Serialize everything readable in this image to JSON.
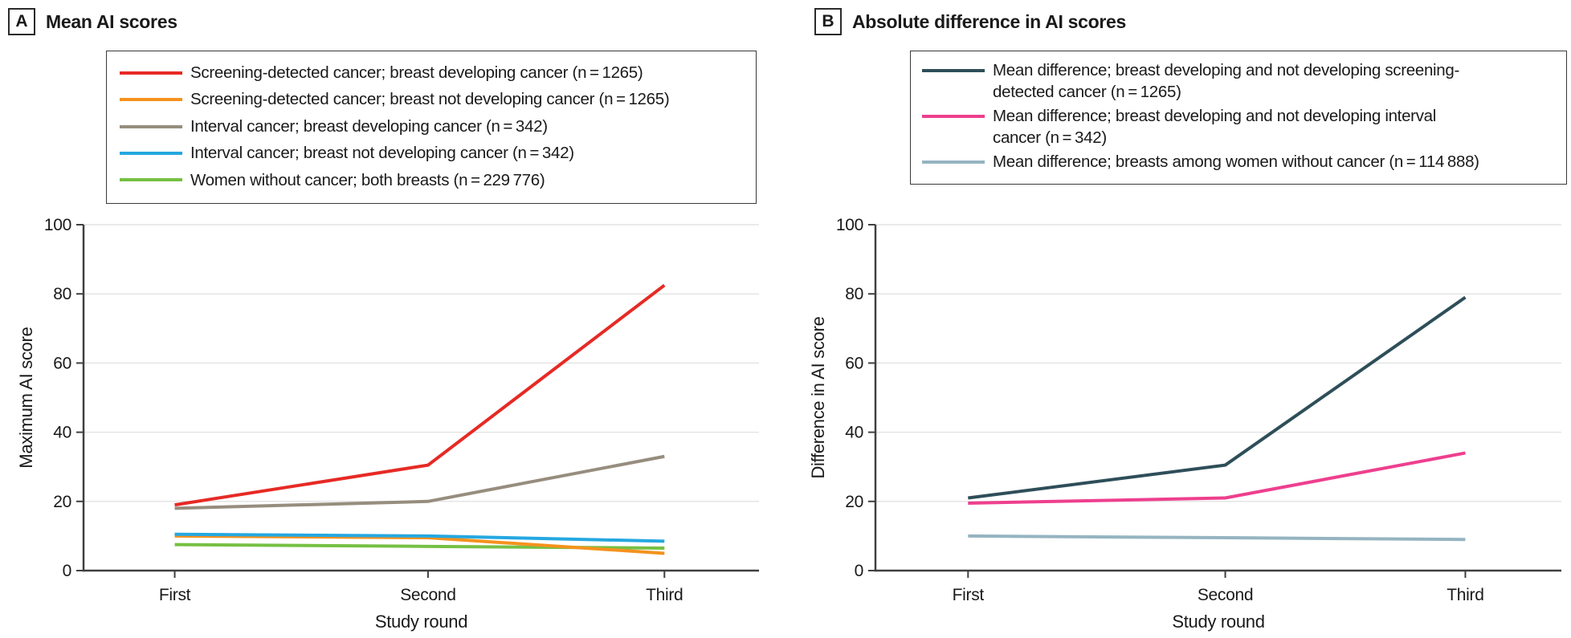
{
  "chart_data": [
    {
      "type": "line",
      "panel_letter": "A",
      "title": "Mean AI scores",
      "categories": [
        "First",
        "Second",
        "Third"
      ],
      "xlabel": "Study round",
      "ylabel": "Maximum AI score",
      "ylim": [
        0,
        100
      ],
      "yticks": [
        0,
        20,
        40,
        60,
        80,
        100
      ],
      "grid": true,
      "legend_position": "top-left-box",
      "paint_order": [
        2,
        4,
        1,
        3,
        0
      ],
      "series": [
        {
          "name_lines": [
            "Screening-detected cancer; breast developing cancer (n = 1265)"
          ],
          "color": "#e62a25",
          "values": [
            19,
            30.5,
            82.5
          ]
        },
        {
          "name_lines": [
            "Screening-detected cancer; breast not developing cancer (n = 1265)"
          ],
          "color": "#f5921e",
          "values": [
            10,
            9.5,
            5
          ]
        },
        {
          "name_lines": [
            "Interval cancer; breast developing cancer (n = 342)"
          ],
          "color": "#978d7e",
          "values": [
            18,
            20,
            33
          ]
        },
        {
          "name_lines": [
            "Interval cancer; breast not developing cancer (n = 342)"
          ],
          "color": "#25a8e0",
          "values": [
            10.5,
            10,
            8.5
          ]
        },
        {
          "name_lines": [
            "Women without cancer; both breasts (n = 229 776)"
          ],
          "color": "#76c043",
          "values": [
            7.5,
            7,
            6.5
          ]
        }
      ]
    },
    {
      "type": "line",
      "panel_letter": "B",
      "title": "Absolute difference in AI scores",
      "categories": [
        "First",
        "Second",
        "Third"
      ],
      "xlabel": "Study round",
      "ylabel": "Difference in AI score",
      "ylim": [
        0,
        100
      ],
      "yticks": [
        0,
        20,
        40,
        60,
        80,
        100
      ],
      "grid": true,
      "legend_position": "top-left-box",
      "paint_order": [
        0,
        1,
        2
      ],
      "series": [
        {
          "name_lines": [
            "Mean difference; breast developing and not developing screening-",
            "detected cancer (n = 1265)"
          ],
          "color": "#2e4e59",
          "values": [
            21,
            30.5,
            79
          ]
        },
        {
          "name_lines": [
            "Mean difference; breast developing and not developing interval",
            "cancer (n = 342)"
          ],
          "color": "#ee3f8e",
          "values": [
            19.5,
            21,
            34
          ]
        },
        {
          "name_lines": [
            "Mean difference; breasts among women without cancer (n = 114 888)"
          ],
          "color": "#95b4c1",
          "values": [
            10,
            9.5,
            9
          ]
        }
      ]
    }
  ]
}
